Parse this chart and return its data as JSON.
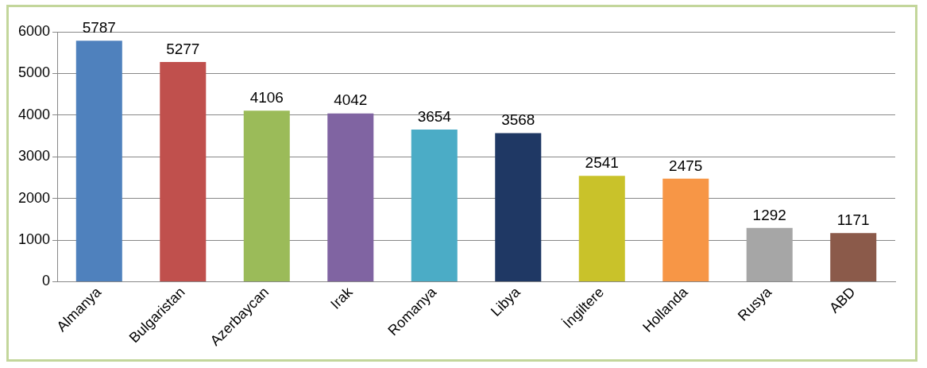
{
  "chart_data": {
    "type": "bar",
    "categories": [
      "Almanya",
      "Bulgaristan",
      "Azerbaycan",
      "Irak",
      "Romanya",
      "Libya",
      "İngiltere",
      "Hollanda",
      "Rusya",
      "ABD"
    ],
    "values": [
      5787,
      5277,
      4106,
      4042,
      3654,
      3568,
      2541,
      2475,
      1292,
      1171
    ],
    "colors": [
      "#4f81bd",
      "#c0504d",
      "#9bbb59",
      "#8064a2",
      "#4bacc6",
      "#1f3864",
      "#c9c22a",
      "#f79646",
      "#a6a6a6",
      "#8b5a4a"
    ],
    "ylim": [
      0,
      6000
    ],
    "yticks": [
      0,
      1000,
      2000,
      3000,
      4000,
      5000,
      6000
    ],
    "grid": "y",
    "data_labels": true
  }
}
